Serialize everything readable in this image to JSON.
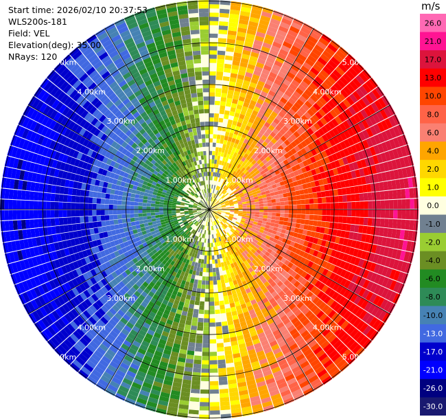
{
  "info": {
    "start_time": "Start time: 2026/02/10 20:37:53",
    "instrument": "WLS200s-181",
    "field": "Field: VEL",
    "elevation": "Elevation(deg): 35.00",
    "nrays": "NRays: 120"
  },
  "colorbar": {
    "unit": "m/s",
    "ticks": [
      "26.0",
      "21.0",
      "17.0",
      "13.0",
      "10.0",
      "8.0",
      "6.0",
      "4.0",
      "2.0",
      "1.0",
      "0.0",
      "-1.0",
      "-2.0",
      "-4.0",
      "-6.0",
      "-8.0",
      "-10.0",
      "-13.0",
      "-17.0",
      "-21.0",
      "-26.0",
      "-30.0"
    ],
    "colors": [
      "#ff69b4",
      "#ff1493",
      "#dc143c",
      "#ff0000",
      "#ff4500",
      "#ff6347",
      "#fa8072",
      "#ffa500",
      "#ffd700",
      "#ffff00",
      "#ffffe0",
      "#708090",
      "#9acd32",
      "#6b8e23",
      "#228b22",
      "#2e8b57",
      "#4682b4",
      "#4169e1",
      "#0000cd",
      "#0000ff",
      "#000080",
      "#191970"
    ]
  },
  "chart_data": {
    "type": "ppi",
    "field": "VEL",
    "units": "m/s",
    "nrays": 120,
    "elevation_deg": 35.0,
    "max_range_km": 5.0,
    "range_ring_labels": [
      "1.00km",
      "2.00km",
      "3.00km",
      "4.00km",
      "5.00km"
    ],
    "spoke_azimuths_deg": [
      0,
      30,
      60,
      90,
      120,
      150,
      180,
      210,
      240,
      270,
      300,
      330
    ],
    "wind_estimate": {
      "direction_deg_toward": 90,
      "approx_speed_ms_at_5km": 22
    }
  }
}
